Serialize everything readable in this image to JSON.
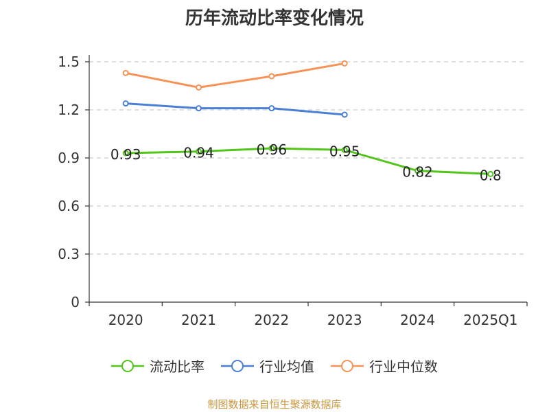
{
  "chart_data": {
    "type": "line",
    "title": "历年流动比率变化情况",
    "categories": [
      "2020",
      "2021",
      "2022",
      "2023",
      "2024",
      "2025Q1"
    ],
    "ylim": [
      0,
      1.5
    ],
    "yticks": [
      "0",
      "0.3",
      "0.6",
      "0.9",
      "1.2",
      "1.5"
    ],
    "grid": true,
    "legend_position": "bottom",
    "series": [
      {
        "name": "流动比率",
        "color": "#52c41a",
        "values": [
          0.93,
          0.94,
          0.96,
          0.95,
          0.82,
          0.8
        ],
        "labels": [
          "0.93",
          "0.94",
          "0.96",
          "0.95",
          "0.82",
          "0.8"
        ]
      },
      {
        "name": "行业均值",
        "color": "#4a7fd4",
        "values": [
          1.24,
          1.21,
          1.21,
          1.17,
          null,
          null
        ]
      },
      {
        "name": "行业中位数",
        "color": "#f79256",
        "values": [
          1.43,
          1.34,
          1.41,
          1.49,
          null,
          null
        ]
      }
    ]
  },
  "source_note": "制图数据来自恒生聚源数据库"
}
